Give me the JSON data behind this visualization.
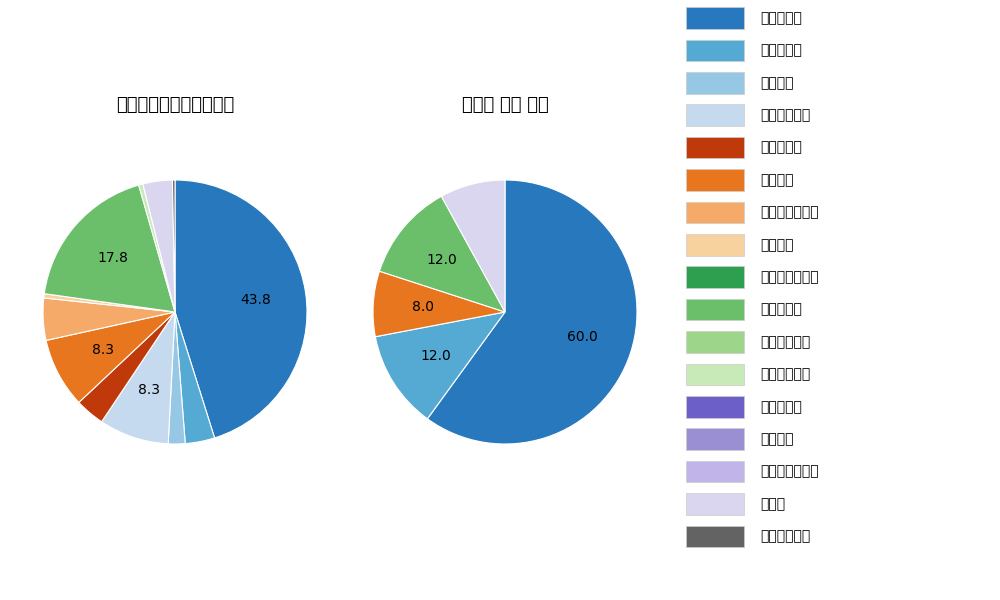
{
  "left_title": "パ・リーグ全プレイヤー",
  "right_title": "長谷川 信哉 選手",
  "pitch_types": [
    "ストレート",
    "ツーシーム",
    "シュート",
    "カットボール",
    "スプリット",
    "フォーク",
    "チェンジアップ",
    "シンカー",
    "高速スライダー",
    "スライダー",
    "縦スライダー",
    "パワーカーブ",
    "スクリュー",
    "ナックル",
    "ナックルカーブ",
    "カーブ",
    "スローカーブ"
  ],
  "pitch_colors": [
    "#2878bd",
    "#55aad4",
    "#96c8e6",
    "#c5d9ef",
    "#c0390b",
    "#e8761e",
    "#f5aa6a",
    "#f7d19e",
    "#2e9e4f",
    "#6bbf6b",
    "#9dd68a",
    "#c8eab8",
    "#6c5fc7",
    "#9b8fd4",
    "#c0b4e8",
    "#dbd6f0",
    "#636363"
  ],
  "left_values": [
    43.8,
    3.5,
    2.0,
    8.3,
    3.5,
    8.3,
    5.0,
    0.5,
    0.0,
    17.8,
    0.0,
    0.5,
    0.0,
    0.0,
    0.0,
    3.5,
    0.3
  ],
  "left_labels": [
    "43.8",
    "",
    "",
    "8.3",
    "",
    "8.3",
    "",
    "",
    "",
    "17.8",
    "",
    "",
    "",
    "",
    "",
    "",
    ""
  ],
  "right_values": [
    60.0,
    12.0,
    0.0,
    0.0,
    0.0,
    8.0,
    0.0,
    0.0,
    0.0,
    12.0,
    0.0,
    0.0,
    0.0,
    0.0,
    0.0,
    8.0,
    0.0
  ],
  "right_labels": [
    "60.0",
    "12.0",
    "",
    "",
    "",
    "8.0",
    "",
    "",
    "",
    "12.0",
    "",
    "",
    "",
    "",
    "",
    "8.0",
    ""
  ],
  "bg_color": "#ffffff",
  "label_fontsize": 10,
  "title_fontsize": 13
}
